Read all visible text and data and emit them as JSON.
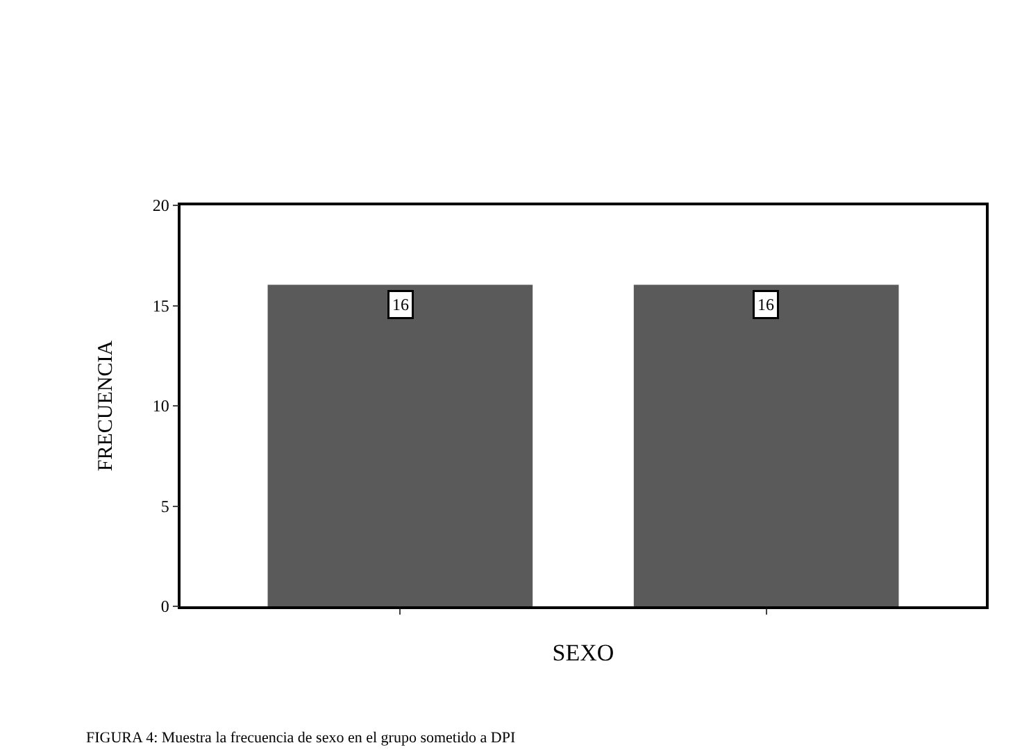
{
  "chart_data": {
    "type": "bar",
    "categories": [
      null,
      null
    ],
    "values": [
      16,
      16
    ],
    "color": "#5a5a5a",
    "xlabel": "SEXO",
    "ylabel": "FRECUENCIA",
    "ylim": [
      0,
      20
    ],
    "yticks": [
      0,
      5,
      10,
      15,
      20
    ],
    "data_labels": true,
    "annotations": [
      "FIGURA 4: Muestra la frecuencia de sexo en el grupo sometido a DPI"
    ]
  }
}
